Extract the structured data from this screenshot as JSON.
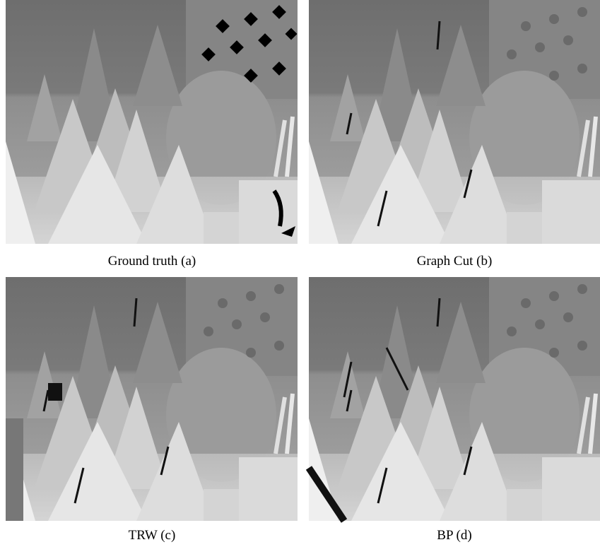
{
  "figure": {
    "panels": [
      {
        "caption": "Ground truth (a)"
      },
      {
        "caption": "Graph Cut (b)"
      },
      {
        "caption": "TRW (c)"
      },
      {
        "caption": "BP (d)"
      }
    ]
  }
}
